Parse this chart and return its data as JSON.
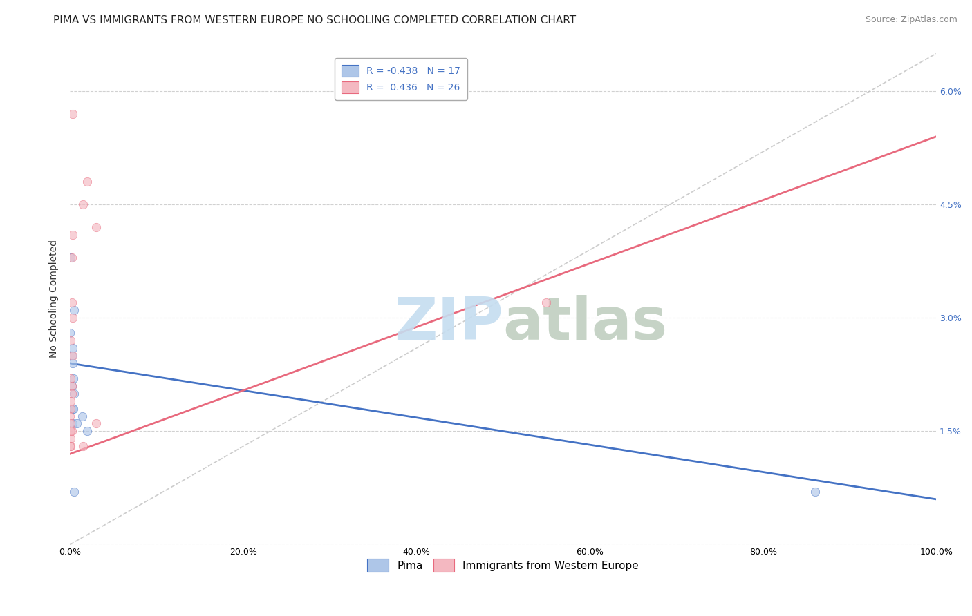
{
  "title": "PIMA VS IMMIGRANTS FROM WESTERN EUROPE NO SCHOOLING COMPLETED CORRELATION CHART",
  "source": "Source: ZipAtlas.com",
  "ylabel": "No Schooling Completed",
  "xlabel": "",
  "bg_color": "#ffffff",
  "plot_bg_color": "#ffffff",
  "grid_color": "#cccccc",
  "legend": {
    "blue_r": -0.438,
    "blue_n": 17,
    "pink_r": 0.436,
    "pink_n": 26
  },
  "blue_scatter": [
    [
      0.001,
      0.038
    ],
    [
      0.0,
      0.028
    ],
    [
      0.005,
      0.031
    ],
    [
      0.003,
      0.026
    ],
    [
      0.004,
      0.022
    ],
    [
      0.002,
      0.025
    ],
    [
      0.003,
      0.024
    ],
    [
      0.002,
      0.021
    ],
    [
      0.005,
      0.02
    ],
    [
      0.003,
      0.018
    ],
    [
      0.004,
      0.018
    ],
    [
      0.003,
      0.016
    ],
    [
      0.008,
      0.016
    ],
    [
      0.014,
      0.017
    ],
    [
      0.02,
      0.015
    ],
    [
      0.86,
      0.007
    ],
    [
      0.005,
      0.007
    ]
  ],
  "pink_scatter": [
    [
      0.003,
      0.057
    ],
    [
      0.015,
      0.045
    ],
    [
      0.03,
      0.042
    ],
    [
      0.02,
      0.048
    ],
    [
      0.003,
      0.041
    ],
    [
      0.002,
      0.038
    ],
    [
      0.002,
      0.032
    ],
    [
      0.003,
      0.03
    ],
    [
      0.001,
      0.027
    ],
    [
      0.003,
      0.025
    ],
    [
      0.001,
      0.022
    ],
    [
      0.002,
      0.021
    ],
    [
      0.002,
      0.02
    ],
    [
      0.001,
      0.019
    ],
    [
      0.001,
      0.018
    ],
    [
      0.0,
      0.017
    ],
    [
      0.001,
      0.016
    ],
    [
      0.0,
      0.015
    ],
    [
      0.002,
      0.015
    ],
    [
      0.001,
      0.014
    ],
    [
      0.001,
      0.013
    ],
    [
      0.0,
      0.013
    ],
    [
      0.015,
      0.013
    ],
    [
      0.55,
      0.032
    ],
    [
      0.03,
      0.016
    ],
    [
      0.001,
      0.015
    ]
  ],
  "xlim": [
    0.0,
    1.0
  ],
  "ylim": [
    0.0,
    0.065
  ],
  "xticks": [
    0.0,
    0.2,
    0.4,
    0.6,
    0.8,
    1.0
  ],
  "yticks": [
    0.0,
    0.015,
    0.03,
    0.045,
    0.06
  ],
  "xticklabels": [
    "0.0%",
    "20.0%",
    "40.0%",
    "60.0%",
    "80.0%",
    "100.0%"
  ],
  "left_yticklabels": [
    "",
    "",
    "",
    "",
    ""
  ],
  "right_yticklabels": [
    "",
    "1.5%",
    "3.0%",
    "4.5%",
    "6.0%"
  ],
  "blue_line_x": [
    0.0,
    1.0
  ],
  "blue_line_y": [
    0.024,
    0.006
  ],
  "pink_line_x": [
    0.0,
    1.0
  ],
  "pink_line_y": [
    0.012,
    0.054
  ],
  "dashed_line_x": [
    0.0,
    1.0
  ],
  "dashed_line_y": [
    0.0,
    0.065
  ],
  "blue_color": "#aec6e8",
  "blue_line_color": "#4472c4",
  "pink_color": "#f4b8c1",
  "pink_line_color": "#e8697d",
  "dashed_color": "#c0c0c0",
  "legend_blue_label": "Pima",
  "legend_pink_label": "Immigrants from Western Europe",
  "title_fontsize": 11,
  "source_fontsize": 9,
  "axis_fontsize": 9,
  "legend_fontsize": 10,
  "scatter_size": 80,
  "scatter_alpha": 0.65
}
